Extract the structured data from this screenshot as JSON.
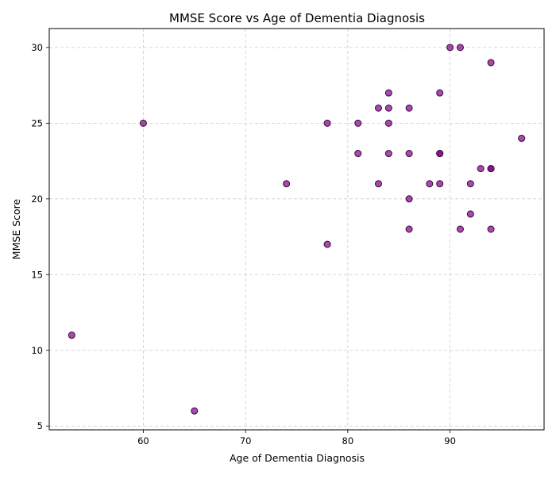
{
  "chart_data": {
    "type": "scatter",
    "title": "MMSE Score vs Age of Dementia Diagnosis",
    "xlabel": "Age of Dementia Diagnosis",
    "ylabel": "MMSE Score",
    "xlim": [
      50.8,
      99.2
    ],
    "ylim": [
      4.75,
      31.25
    ],
    "xticks": [
      60,
      70,
      80,
      90
    ],
    "yticks": [
      5,
      10,
      15,
      20,
      25,
      30
    ],
    "grid": true,
    "marker_color": "#800080",
    "marker_edge_color": "#3d003d",
    "points": [
      {
        "x": 53,
        "y": 11
      },
      {
        "x": 60,
        "y": 25
      },
      {
        "x": 65,
        "y": 6
      },
      {
        "x": 74,
        "y": 21
      },
      {
        "x": 78,
        "y": 25
      },
      {
        "x": 78,
        "y": 17
      },
      {
        "x": 81,
        "y": 25
      },
      {
        "x": 81,
        "y": 23
      },
      {
        "x": 83,
        "y": 26
      },
      {
        "x": 83,
        "y": 21
      },
      {
        "x": 84,
        "y": 27
      },
      {
        "x": 84,
        "y": 26
      },
      {
        "x": 84,
        "y": 25
      },
      {
        "x": 84,
        "y": 23
      },
      {
        "x": 86,
        "y": 26
      },
      {
        "x": 86,
        "y": 23
      },
      {
        "x": 86,
        "y": 20
      },
      {
        "x": 86,
        "y": 18
      },
      {
        "x": 88,
        "y": 21
      },
      {
        "x": 89,
        "y": 27
      },
      {
        "x": 89,
        "y": 23
      },
      {
        "x": 89,
        "y": 23
      },
      {
        "x": 89,
        "y": 21
      },
      {
        "x": 90,
        "y": 30
      },
      {
        "x": 91,
        "y": 30
      },
      {
        "x": 91,
        "y": 18
      },
      {
        "x": 92,
        "y": 21
      },
      {
        "x": 92,
        "y": 19
      },
      {
        "x": 93,
        "y": 22
      },
      {
        "x": 94,
        "y": 29
      },
      {
        "x": 94,
        "y": 22
      },
      {
        "x": 94,
        "y": 22
      },
      {
        "x": 94,
        "y": 18
      },
      {
        "x": 97,
        "y": 24
      }
    ]
  }
}
